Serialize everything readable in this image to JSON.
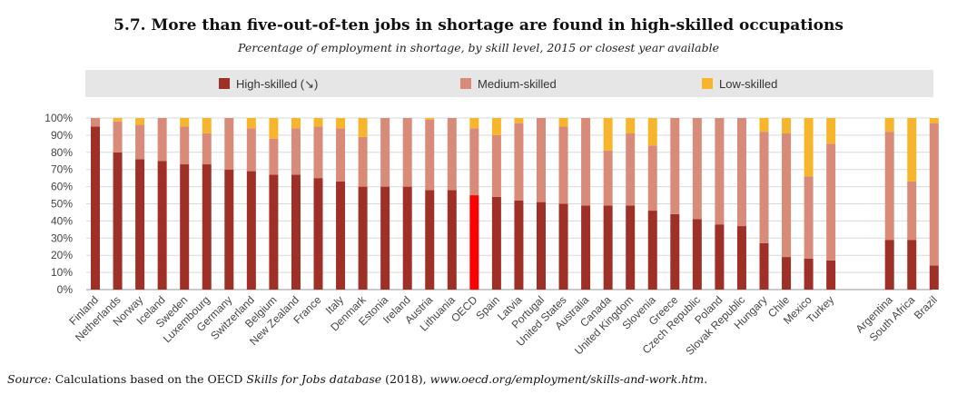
{
  "title": "5.7. More than five-out-of-ten jobs in shortage are found in high-skilled occupations",
  "subtitle": "Percentage of employment in shortage, by skill level, 2015 or closest year available",
  "source": {
    "label": "Source:",
    "text_before": " Calculations based on the OECD ",
    "db": "Skills for Jobs database",
    "text_after": " (2018), ",
    "link": "www.oecd.org/employment/skills-and-work.htm",
    "end": "."
  },
  "colors": {
    "high": "#9e3027",
    "medium": "#d98b7a",
    "low": "#f7b52c",
    "highlight": "#ff0000",
    "legend_bg": "#e6e6e6",
    "grid": "#d9d9d9"
  },
  "chart_data": {
    "type": "bar",
    "stacked": true,
    "legend_position": "top",
    "grid": true,
    "ylim": [
      0,
      100
    ],
    "y_ticks": [
      "0%",
      "10%",
      "20%",
      "30%",
      "40%",
      "50%",
      "60%",
      "70%",
      "80%",
      "90%",
      "100%"
    ],
    "highlight_category": "OECD",
    "gap_before": "Argentina",
    "categories": [
      "Finland",
      "Netherlands",
      "Norway",
      "Iceland",
      "Sweden",
      "Luxembourg",
      "Germany",
      "Switzerland",
      "Belgium",
      "New Zealand",
      "France",
      "Italy",
      "Denmark",
      "Estonia",
      "Ireland",
      "Austria",
      "Lithuania",
      "OECD",
      "Spain",
      "Latvia",
      "Portugal",
      "United States",
      "Australia",
      "Canada",
      "United Kingdom",
      "Slovenia",
      "Greece",
      "Czech Republic",
      "Poland",
      "Slovak Republic",
      "Hungary",
      "Chile",
      "Mexico",
      "Turkey",
      "Argentina",
      "South Africa",
      "Brazil"
    ],
    "series": [
      {
        "name": "High-skilled (↘)",
        "key": "high",
        "values": [
          95,
          80,
          76,
          75,
          73,
          73,
          70,
          69,
          67,
          67,
          65,
          63,
          60,
          60,
          60,
          58,
          58,
          55,
          54,
          52,
          51,
          50,
          49,
          49,
          49,
          46,
          44,
          41,
          38,
          37,
          27,
          19,
          18,
          17,
          29,
          29,
          14
        ]
      },
      {
        "name": "Medium-skilled",
        "key": "medium",
        "values": [
          5,
          18,
          20,
          25,
          22,
          18,
          30,
          25,
          21,
          27,
          30,
          31,
          29,
          40,
          40,
          41,
          42,
          39,
          36,
          45,
          49,
          45,
          51,
          32,
          42,
          38,
          56,
          59,
          62,
          63,
          65,
          72,
          48,
          68,
          63,
          34,
          83
        ]
      },
      {
        "name": "Low-skilled",
        "key": "low",
        "values": [
          0,
          2,
          4,
          0,
          5,
          9,
          0,
          6,
          12,
          6,
          5,
          6,
          11,
          0,
          0,
          1,
          0,
          6,
          10,
          3,
          0,
          5,
          0,
          19,
          9,
          16,
          0,
          0,
          0,
          0,
          8,
          9,
          34,
          15,
          8,
          37,
          3
        ]
      }
    ]
  }
}
